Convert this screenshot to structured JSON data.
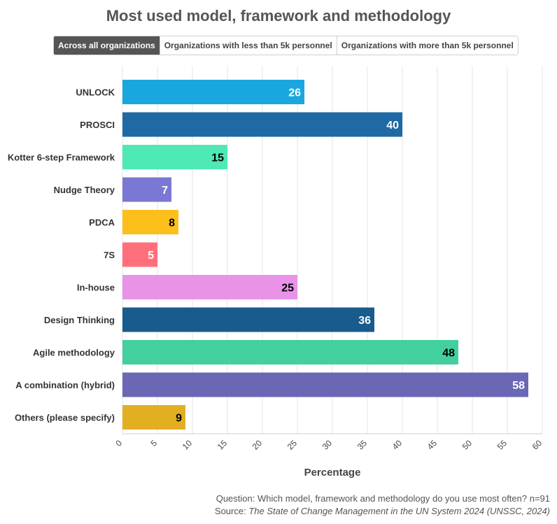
{
  "title": "Most used model, framework and methodology",
  "tabs": [
    {
      "label": "Across all organizations",
      "active": true
    },
    {
      "label": "Organizations with less than 5k personnel",
      "active": false
    },
    {
      "label": "Organizations with more than 5k personnel",
      "active": false
    }
  ],
  "footer": {
    "question": "Question: Which model, framework and methodology do you use most often? n=91",
    "source_prefix": "Source: ",
    "source_title": "The State of Change Management in the UN System 2024 (UNSSC, 2024)"
  },
  "chart_data": {
    "type": "bar",
    "orientation": "horizontal",
    "categories": [
      "UNLOCK",
      "PROSCI",
      "Kotter 6-step Framework",
      "Nudge Theory",
      "PDCA",
      "7S",
      "In-house",
      "Design Thinking",
      "Agile methodology",
      "A combination (hybrid)",
      "Others (please specify)"
    ],
    "values": [
      26,
      40,
      15,
      7,
      8,
      5,
      25,
      36,
      48,
      58,
      9
    ],
    "colors": [
      "#1aa7df",
      "#1f6aa5",
      "#4ee9b5",
      "#7b77d4",
      "#fdbf1a",
      "#ff6f7b",
      "#e893e8",
      "#185b8c",
      "#43cf9e",
      "#6a67b5",
      "#e2ae22"
    ],
    "label_colors": [
      "#ffffff",
      "#ffffff",
      "#000000",
      "#ffffff",
      "#000000",
      "#ffffff",
      "#000000",
      "#ffffff",
      "#000000",
      "#ffffff",
      "#000000"
    ],
    "xlabel": "Percentage",
    "xlim": [
      0,
      60
    ],
    "xticks": [
      0,
      5,
      10,
      15,
      20,
      25,
      30,
      35,
      40,
      45,
      50,
      55,
      60
    ],
    "grid": true
  }
}
